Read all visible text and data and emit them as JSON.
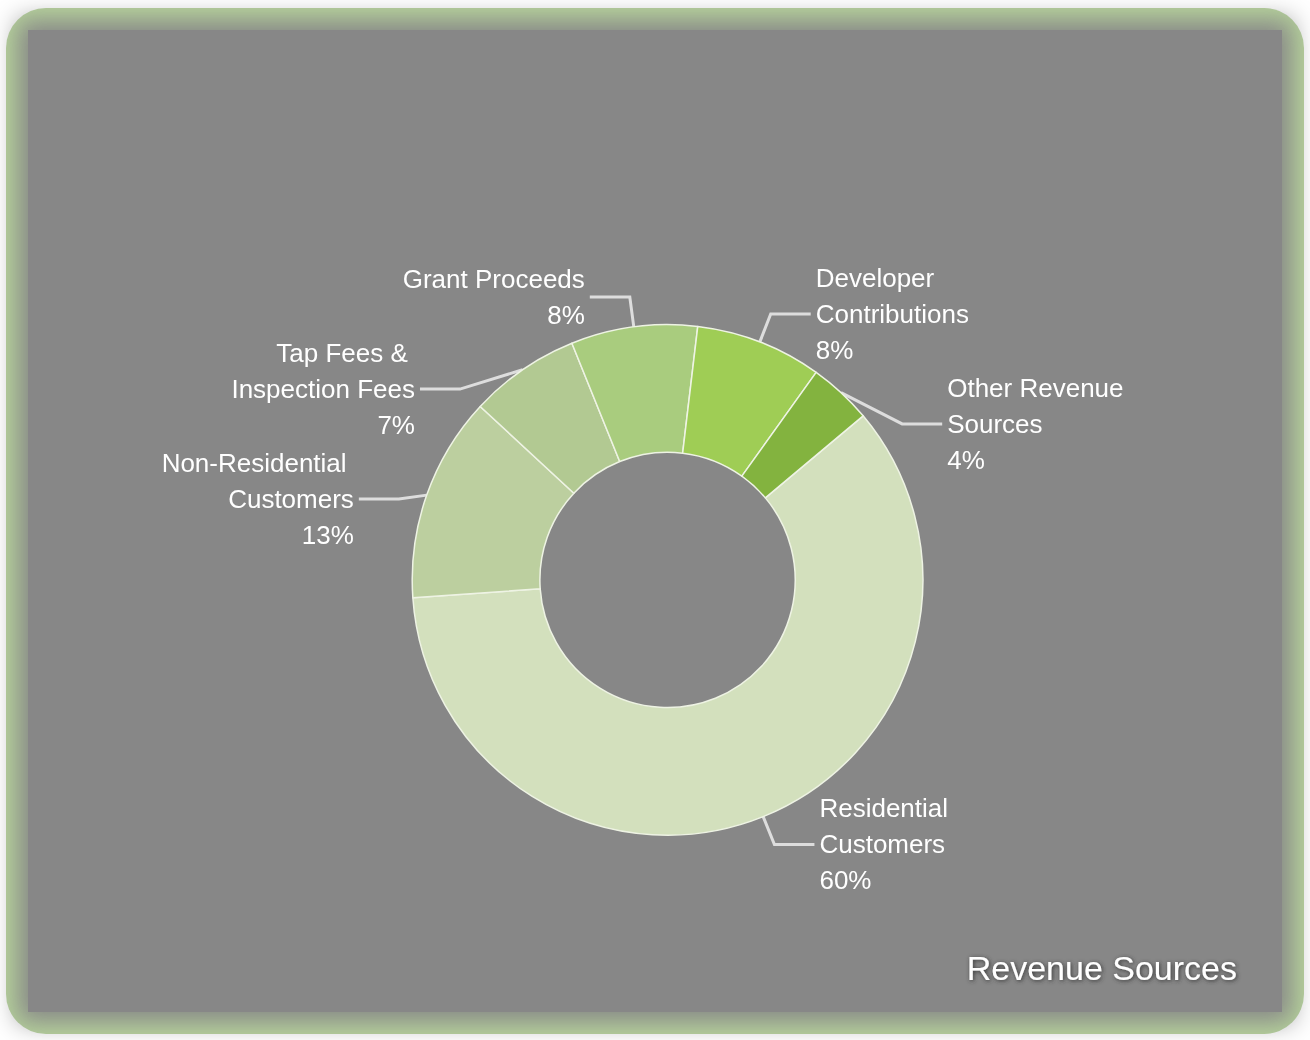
{
  "chart_data": {
    "type": "donut",
    "title": "Revenue Sources",
    "categories": [
      "Residential Customers",
      "Non-Residential Customers",
      "Tap Fees & Inspection Fees",
      "Grant Proceeds",
      "Developer Contributions",
      "Other Revenue Sources"
    ],
    "values": [
      60,
      13,
      7,
      8,
      8,
      4
    ],
    "value_labels": [
      "60%",
      "13%",
      "7%",
      "8%",
      "8%",
      "4%"
    ],
    "colors": [
      "#d3e0bd",
      "#bccf9f",
      "#b2c992",
      "#a9cc7e",
      "#9fcd55",
      "#83b33f"
    ],
    "legend": false
  }
}
